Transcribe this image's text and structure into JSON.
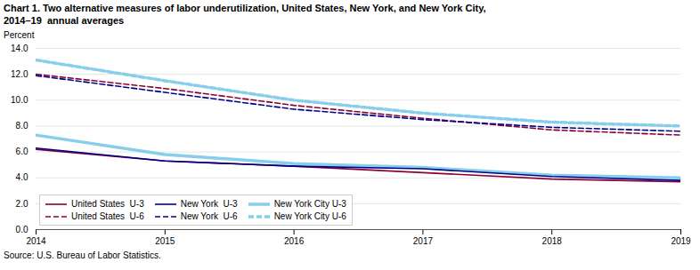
{
  "chart_data": {
    "type": "line",
    "title": "Chart 1. Two alternative measures of labor underutilization, United States, New York, and New York City,\n2014–19  annual averages",
    "ylabel": "Percent",
    "source": "Source: U.S. Bureau of Labor Statistics.",
    "x": [
      2014,
      2015,
      2016,
      2017,
      2018,
      2019
    ],
    "series": [
      {
        "name": "United States  U-3",
        "color": "#8B0038",
        "line_style": "solid",
        "values": [
          6.2,
          5.3,
          4.9,
          4.4,
          3.9,
          3.7
        ]
      },
      {
        "name": "New York  U-3",
        "color": "#00008B",
        "line_style": "solid",
        "values": [
          6.3,
          5.3,
          4.9,
          4.7,
          4.1,
          3.8
        ]
      },
      {
        "name": "New York City U-3",
        "color": "#87CEEB",
        "line_style": "solid",
        "values": [
          7.3,
          5.8,
          5.1,
          4.8,
          4.2,
          4.0
        ]
      },
      {
        "name": "United States  U-6",
        "color": "#8B0038",
        "line_style": "dashed",
        "values": [
          12.0,
          10.9,
          9.6,
          8.6,
          7.7,
          7.3
        ]
      },
      {
        "name": "New York  U-6",
        "color": "#00008B",
        "line_style": "dashed",
        "values": [
          11.9,
          10.6,
          9.3,
          8.5,
          7.9,
          7.6
        ]
      },
      {
        "name": "New York City U-6",
        "color": "#87CEEB",
        "line_style": "dashed",
        "values": [
          13.1,
          11.5,
          10.0,
          9.0,
          8.3,
          8.0
        ]
      }
    ],
    "xlim": [
      2014,
      2019
    ],
    "xticks": [
      2014,
      2015,
      2016,
      2017,
      2018,
      2019
    ],
    "ylim": [
      0,
      14
    ],
    "yticks": [
      {
        "value": 0,
        "label": "0.0"
      },
      {
        "value": 2,
        "label": "2.0"
      },
      {
        "value": 4,
        "label": "4.0"
      },
      {
        "value": 6,
        "label": "6.0"
      },
      {
        "value": 8,
        "label": "8.0"
      },
      {
        "value": 10,
        "label": "10.0"
      },
      {
        "value": 12,
        "label": "12.0"
      },
      {
        "value": 14,
        "label": "14.0"
      }
    ],
    "grid": true,
    "legend": "lower left"
  }
}
